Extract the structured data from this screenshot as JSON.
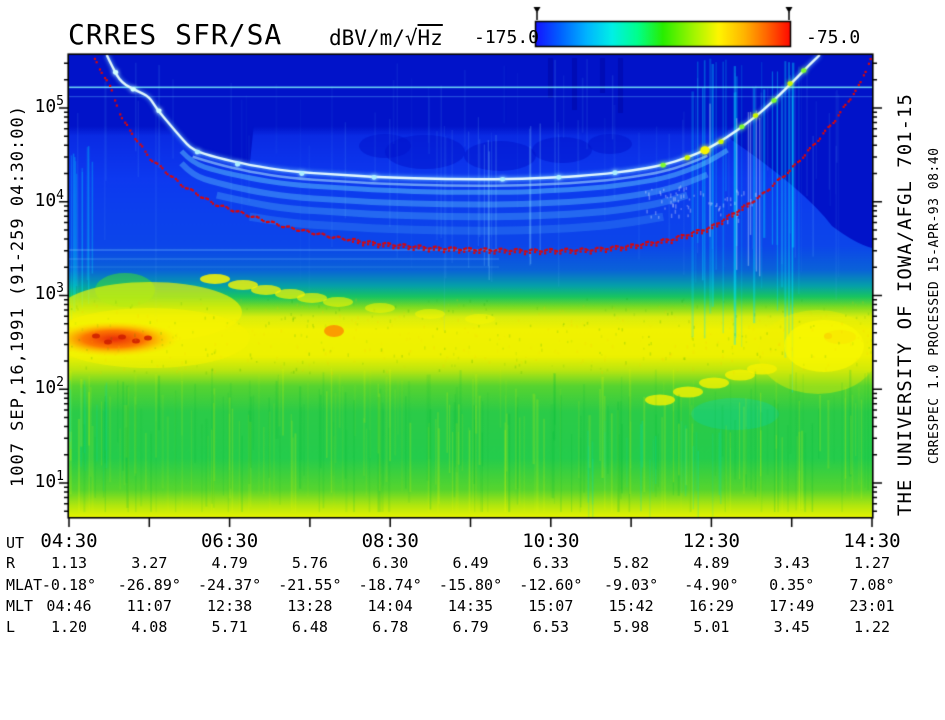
{
  "title": "CRRES SFR/SA",
  "colorbar": {
    "units_prefix": "dBV/m/",
    "units_radical": "√",
    "units_sqrt": "Hz",
    "min_label": "-175.0",
    "max_label": "-75.0",
    "stops": [
      [
        0,
        "#1414FF"
      ],
      [
        0.1,
        "#0064FF"
      ],
      [
        0.2,
        "#00B4FF"
      ],
      [
        0.3,
        "#00F0E6"
      ],
      [
        0.4,
        "#00FF8C"
      ],
      [
        0.5,
        "#28EE00"
      ],
      [
        0.62,
        "#A0F500"
      ],
      [
        0.72,
        "#FFF500"
      ],
      [
        0.82,
        "#FFB400"
      ],
      [
        0.91,
        "#FF6400"
      ],
      [
        1,
        "#FF0A00"
      ]
    ]
  },
  "left_label": "1007  SEP,16,1991  (91-259 04:30:00)",
  "right_label_large": "THE UNIVERSITY OF IOWA/AFGL 701-15",
  "right_label_small": "CRRESPEC 1.0  PROCESSED 15-APR-93  08:40",
  "chart_data": {
    "type": "heatmap",
    "subtype": "spectrogram",
    "title": "CRRES SFR/SA",
    "color_scale": {
      "units": "dBV/m/√Hz",
      "min": -175.0,
      "max": -75.0,
      "palette": [
        "blue",
        "cyan",
        "green",
        "yellow",
        "red"
      ]
    },
    "x_axis": {
      "label": "UT",
      "start_hour": 4.5,
      "end_hour": 14.5,
      "major_tick_every_hours": 1,
      "labeled_ticks": [
        "04:30",
        "06:30",
        "08:30",
        "10:30",
        "12:30",
        "14:30"
      ]
    },
    "y_axis": {
      "scale": "log",
      "unit": "Hz",
      "decade_labels": [
        "10^5",
        "10^4",
        "10^3",
        "10^2",
        "10^1"
      ],
      "decade_exponents": [
        5,
        4,
        3,
        2,
        1
      ],
      "log10_range": [
        0.64,
        5.565
      ]
    },
    "ephemeris": {
      "hours": [
        4.5,
        5.5,
        6.5,
        7.5,
        8.5,
        9.5,
        10.5,
        11.5,
        12.5,
        13.5,
        14.5
      ],
      "rows": [
        {
          "label": "UT",
          "values": [
            "04:30",
            "",
            "06:30",
            "",
            "08:30",
            "",
            "10:30",
            "",
            "12:30",
            "",
            "14:30"
          ]
        },
        {
          "label": "R",
          "values": [
            "1.13",
            "3.27",
            "4.79",
            "5.76",
            "6.30",
            "6.49",
            "6.33",
            "5.82",
            "4.89",
            "3.43",
            "1.27"
          ]
        },
        {
          "label": "MLAT",
          "values": [
            "-0.18°",
            "-26.89°",
            "-24.37°",
            "-21.55°",
            "-18.74°",
            "-15.80°",
            "-12.60°",
            "-9.03°",
            "-4.90°",
            "0.35°",
            "7.08°"
          ]
        },
        {
          "label": "MLT",
          "values": [
            "04:46",
            "11:07",
            "12:38",
            "13:28",
            "14:04",
            "14:35",
            "15:07",
            "15:42",
            "16:29",
            "17:49",
            "23:01"
          ]
        },
        {
          "label": "L",
          "values": [
            "1.20",
            "4.08",
            "5.71",
            "6.48",
            "6.78",
            "6.79",
            "6.53",
            "5.98",
            "5.01",
            "3.45",
            "1.22"
          ]
        }
      ]
    },
    "traces": {
      "fce_red_dotted": [
        [
          4.79,
          5.56
        ],
        [
          5.0,
          5.25
        ],
        [
          5.17,
          4.87
        ],
        [
          5.5,
          4.47
        ],
        [
          5.9,
          4.18
        ],
        [
          6.3,
          3.98
        ],
        [
          6.75,
          3.85
        ],
        [
          7.2,
          3.73
        ],
        [
          7.8,
          3.62
        ],
        [
          8.3,
          3.56
        ],
        [
          9.0,
          3.51
        ],
        [
          9.6,
          3.49
        ],
        [
          10.3,
          3.48
        ],
        [
          11.0,
          3.49
        ],
        [
          11.5,
          3.53
        ],
        [
          12.0,
          3.6
        ],
        [
          12.5,
          3.73
        ],
        [
          13.1,
          4.05
        ],
        [
          13.5,
          4.35
        ],
        [
          13.75,
          4.58
        ],
        [
          14.05,
          4.88
        ],
        [
          14.35,
          5.25
        ],
        [
          14.5,
          5.56
        ]
      ],
      "uhr_bright": [
        [
          4.97,
          5.565
        ],
        [
          5.05,
          5.42
        ],
        [
          5.15,
          5.27
        ],
        [
          5.35,
          5.18
        ],
        [
          5.5,
          5.12
        ],
        [
          5.6,
          4.98
        ],
        [
          5.76,
          4.82
        ],
        [
          5.9,
          4.68
        ],
        [
          6.04,
          4.55
        ],
        [
          6.34,
          4.47
        ],
        [
          6.75,
          4.39
        ],
        [
          7.25,
          4.32
        ],
        [
          7.85,
          4.29
        ],
        [
          8.4,
          4.26
        ],
        [
          9.2,
          4.24
        ],
        [
          10.0,
          4.24
        ],
        [
          10.6,
          4.26
        ],
        [
          11.1,
          4.29
        ],
        [
          11.5,
          4.33
        ],
        [
          11.9,
          4.39
        ],
        [
          12.2,
          4.47
        ],
        [
          12.45,
          4.56
        ],
        [
          12.7,
          4.69
        ],
        [
          12.95,
          4.84
        ],
        [
          13.15,
          4.98
        ],
        [
          13.35,
          5.14
        ],
        [
          13.55,
          5.31
        ],
        [
          13.72,
          5.46
        ],
        [
          13.85,
          5.565
        ]
      ],
      "uhr_bright_spots": [
        [
          5.08,
          5.38
        ],
        [
          5.3,
          5.2
        ],
        [
          5.62,
          4.97
        ],
        [
          6.1,
          4.53
        ],
        [
          6.6,
          4.4
        ],
        [
          7.4,
          4.3
        ],
        [
          8.3,
          4.26
        ],
        [
          9.9,
          4.24
        ],
        [
          10.6,
          4.26
        ],
        [
          11.3,
          4.31
        ],
        [
          11.9,
          4.39
        ],
        [
          12.2,
          4.47
        ],
        [
          12.42,
          4.55
        ],
        [
          12.62,
          4.64
        ],
        [
          12.88,
          4.8
        ],
        [
          13.05,
          4.92
        ],
        [
          13.28,
          5.08
        ],
        [
          13.48,
          5.26
        ],
        [
          13.65,
          5.4
        ]
      ]
    }
  }
}
